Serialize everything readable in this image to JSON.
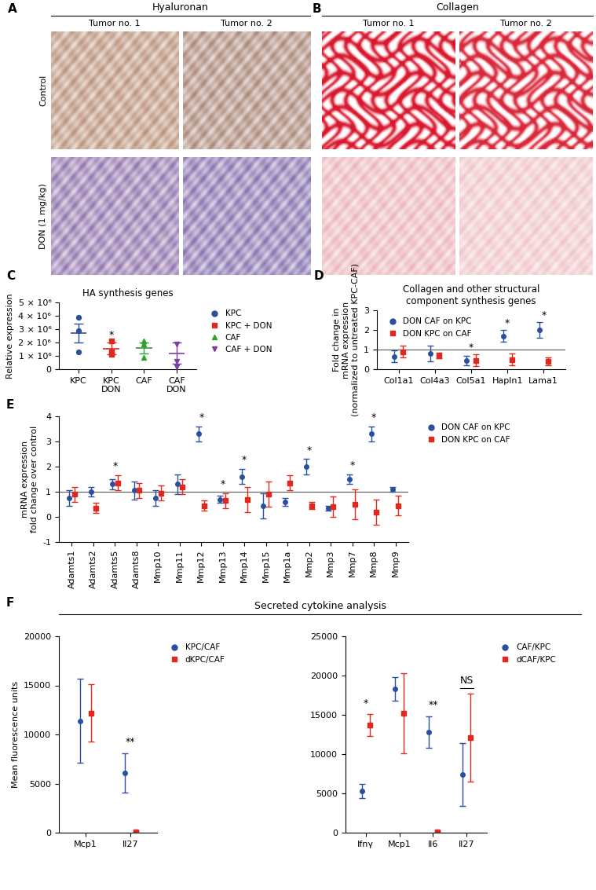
{
  "image_panels": [
    {
      "label": "A",
      "title": "Hyaluronan",
      "columns": [
        "Tumor no. 1",
        "Tumor no. 2"
      ],
      "rows": [
        "Control",
        "DON (1 mg/kg)"
      ],
      "row_labels": true
    },
    {
      "label": "B",
      "title": "Collagen",
      "columns": [
        "Tumor no. 1",
        "Tumor no. 2"
      ],
      "rows": [
        "Control",
        "DON (1 mg/kg)"
      ],
      "row_labels": false
    }
  ],
  "chart_data": [
    {
      "label": "C",
      "type": "scatter",
      "title": "HA synthesis genes",
      "y_label": "Relative expression",
      "categories": [
        "KPC",
        "KPC\nDON",
        "CAF",
        "CAF\nDON"
      ],
      "series": [
        {
          "name": "KPC",
          "color": "#2a4fa0",
          "marker": "o",
          "value": 2700000,
          "error": 700000,
          "points": [
            3900000,
            2900000,
            1300000
          ]
        },
        {
          "name": "KPC + DON",
          "color": "#e0281e",
          "marker": "s",
          "value": 1550000,
          "error": 450000,
          "points": [
            2100000,
            1300000,
            1100000
          ]
        },
        {
          "name": "CAF",
          "color": "#2ca02c",
          "marker": "^",
          "value": 1600000,
          "error": 400000,
          "points": [
            2100000,
            1900000,
            900000
          ]
        },
        {
          "name": "CAF + DON",
          "color": "#7b3fa0",
          "marker": "v",
          "value": 1200000,
          "error": 800000,
          "points": [
            1900000,
            600000,
            200000
          ]
        }
      ],
      "ylim": [
        0,
        5000000
      ],
      "yticks": [
        0,
        {
          "value": 1000000,
          "label": "1 × 10⁶"
        },
        {
          "value": 2000000,
          "label": "2 × 10⁶"
        },
        {
          "value": 3000000,
          "label": "3 × 10⁶"
        },
        {
          "value": 4000000,
          "label": "4 × 10⁶"
        },
        {
          "value": 5000000,
          "label": "5 × 10⁶"
        }
      ],
      "legend": "right",
      "annotations": [
        {
          "category": "KPC\nDON",
          "text": "*"
        }
      ]
    },
    {
      "label": "D",
      "type": "scatter",
      "title": "Collagen and other structural\ncomponent synthesis genes",
      "y_label": "Fold change in\nmRNA expression\n(normalized to untreated KPC-CAF)",
      "categories": [
        "Col1a1",
        "Col4a3",
        "Col5a1",
        "Hapln1",
        "Lama1"
      ],
      "series": [
        {
          "name": "DON CAF on KPC",
          "color": "#2a4fa0",
          "marker": "o",
          "values": [
            0.65,
            0.8,
            0.45,
            1.7,
            2.0
          ],
          "errors": [
            0.3,
            0.4,
            0.25,
            0.3,
            0.4
          ]
        },
        {
          "name": "DON KPC on CAF",
          "color": "#e0281e",
          "marker": "s",
          "values": [
            0.9,
            0.7,
            0.45,
            0.5,
            0.4
          ],
          "errors": [
            0.3,
            0.15,
            0.3,
            0.3,
            0.2
          ]
        }
      ],
      "ylim": [
        0,
        3
      ],
      "yticks": [
        0,
        1,
        2,
        3
      ],
      "reference_line": 1,
      "legend": "upper left",
      "annotations": [
        {
          "category": "Col5a1",
          "text": "*"
        },
        {
          "category": "Hapln1",
          "text": "*"
        },
        {
          "category": "Lama1",
          "text": "*"
        }
      ]
    },
    {
      "label": "E",
      "type": "scatter",
      "y_label": "mRNA expression\nfold change over control",
      "categories": [
        "Adamts1",
        "Adamts2",
        "Adamts5",
        "Adamts8",
        "Mmp10",
        "Mmp11",
        "Mmp12",
        "Mmp13",
        "Mmp14",
        "Mmp15",
        "Mmp1a",
        "Mmp2",
        "Mmp3",
        "Mmp7",
        "Mmp8",
        "Mmp9"
      ],
      "series": [
        {
          "name": "DON CAF on KPC",
          "color": "#2a4fa0",
          "marker": "o",
          "values": [
            0.75,
            1.0,
            1.3,
            1.05,
            0.75,
            1.3,
            3.3,
            0.7,
            1.6,
            0.45,
            0.6,
            2.0,
            0.35,
            1.5,
            3.3,
            1.1
          ],
          "errors": [
            0.3,
            0.2,
            0.2,
            0.35,
            0.3,
            0.4,
            0.3,
            0.15,
            0.3,
            0.5,
            0.15,
            0.3,
            0.1,
            0.2,
            0.3,
            0.1
          ]
        },
        {
          "name": "DON KPC on CAF",
          "color": "#e0281e",
          "marker": "s",
          "values": [
            0.9,
            0.35,
            1.35,
            1.05,
            0.95,
            1.2,
            0.45,
            0.65,
            0.7,
            0.9,
            1.35,
            0.45,
            0.4,
            0.5,
            0.2,
            0.45
          ],
          "errors": [
            0.3,
            0.2,
            0.3,
            0.3,
            0.3,
            0.3,
            0.2,
            0.3,
            0.5,
            0.5,
            0.3,
            0.15,
            0.4,
            0.6,
            0.5,
            0.4
          ]
        }
      ],
      "ylim": [
        -1,
        4
      ],
      "yticks": [
        -1,
        0,
        1,
        2,
        3,
        4
      ],
      "reference_line": 1,
      "legend": "right",
      "annotations": [
        {
          "category": "Adamts5",
          "text": "*"
        },
        {
          "category": "Mmp12",
          "text": "*"
        },
        {
          "category": "Mmp13",
          "text": "*"
        },
        {
          "category": "Mmp14",
          "text": "*"
        },
        {
          "category": "Mmp2",
          "text": "*"
        },
        {
          "category": "Mmp7",
          "text": "*"
        },
        {
          "category": "Mmp8",
          "text": "*"
        }
      ]
    },
    {
      "label": "F",
      "type": "scatter",
      "title": "Secreted cytokine analysis",
      "y_label": "Mean fluorescence units",
      "categories": [
        "Mcp1",
        "Il27"
      ],
      "series": [
        {
          "name": "KPC/CAF",
          "color": "#2a4fa0",
          "marker": "o",
          "values": [
            11400,
            6100
          ],
          "errors": [
            4300,
            2000
          ]
        },
        {
          "name": "dKPC/CAF",
          "color": "#e0281e",
          "marker": "s",
          "values": [
            12200,
            100
          ],
          "errors": [
            2900,
            100
          ]
        }
      ],
      "ylim": [
        0,
        20000
      ],
      "yticks": [
        0,
        5000,
        10000,
        15000,
        20000
      ],
      "legend": "right",
      "annotations": [
        {
          "category": "Il27",
          "text": "**"
        }
      ]
    },
    {
      "type": "scatter",
      "categories": [
        "Ifnγ",
        "Mcp1",
        "Il6",
        "Il27"
      ],
      "series": [
        {
          "name": "CAF/KPC",
          "color": "#2a4fa0",
          "marker": "o",
          "values": [
            5300,
            18300,
            12800,
            7400
          ],
          "errors": [
            900,
            1500,
            2000,
            4000
          ]
        },
        {
          "name": "dCAF/KPC",
          "color": "#e0281e",
          "marker": "s",
          "values": [
            13700,
            15200,
            100,
            12100
          ],
          "errors": [
            1400,
            5100,
            100,
            5600
          ]
        }
      ],
      "ylim": [
        0,
        25000
      ],
      "yticks": [
        0,
        5000,
        10000,
        15000,
        20000,
        25000
      ],
      "legend": "right",
      "annotations": [
        {
          "category": "Ifnγ",
          "text": "*"
        },
        {
          "category": "Il6",
          "text": "**"
        },
        {
          "category": "Il27",
          "text": "NS",
          "bracket": true
        }
      ]
    }
  ]
}
